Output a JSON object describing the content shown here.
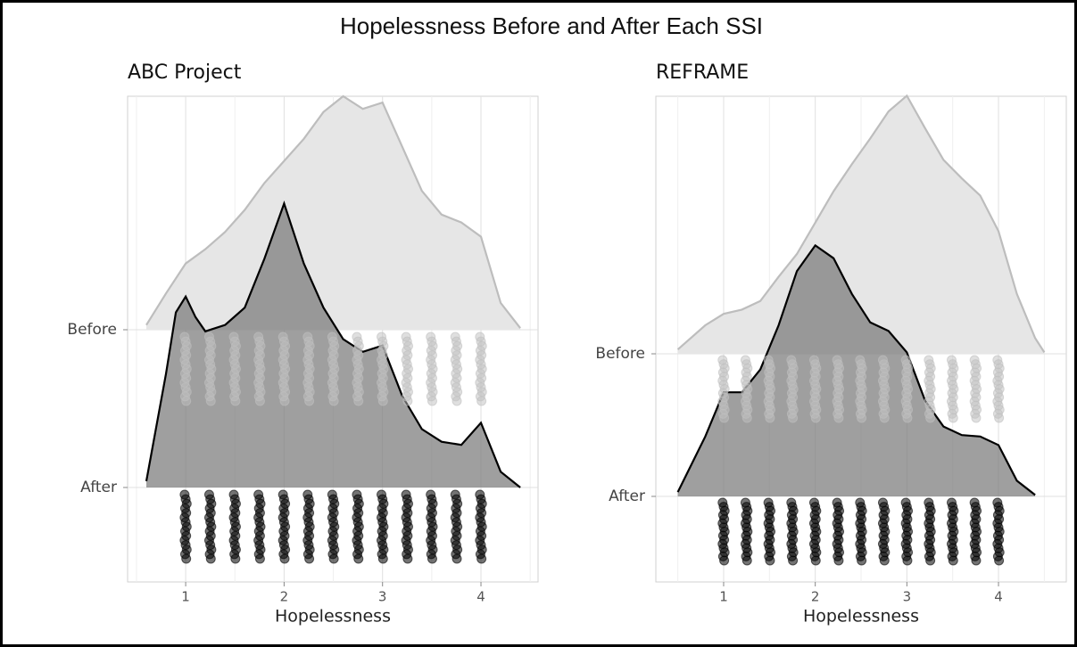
{
  "title": "Hopelessness Before and After Each SSI",
  "chart_data": [
    {
      "type": "raincloud",
      "title": "ABC Project",
      "x_label": "Hopelessness",
      "xlim": [
        0.41,
        4.58
      ],
      "xticks": [
        1,
        2,
        3,
        4
      ],
      "minor_xticks": [
        0.5,
        1.5,
        2.5,
        3.5,
        4.5
      ],
      "grid": true,
      "categories": [
        "Before",
        "After"
      ],
      "series": [
        {
          "color": "#bfbfbf",
          "fill": "#e6e6e6",
          "line_color": "#bdbdbd",
          "x": [
            0.6,
            0.8,
            1.0,
            1.2,
            1.4,
            1.6,
            1.8,
            2.0,
            2.2,
            2.4,
            2.6,
            2.8,
            3.0,
            3.2,
            3.4,
            3.6,
            3.8,
            4.0,
            4.2,
            4.4
          ],
          "values": [
            0.03,
            0.23,
            0.42,
            0.51,
            0.62,
            0.76,
            0.93,
            1.07,
            1.21,
            1.38,
            1.48,
            1.4,
            1.44,
            1.16,
            0.88,
            0.73,
            0.68,
            0.59,
            0.17,
            0.01
          ],
          "points_x": [
            1,
            1.25,
            1.5,
            1.75,
            2,
            2.25,
            2.5,
            2.75,
            3,
            3.25,
            3.5,
            3.75,
            4
          ]
        },
        {
          "color": "#000000",
          "fill": "#7a7a7a",
          "line_color": "#000000",
          "x": [
            0.6,
            0.8,
            0.9,
            1.0,
            1.1,
            1.2,
            1.4,
            1.6,
            1.8,
            2.0,
            2.2,
            2.4,
            2.6,
            2.8,
            3.0,
            3.2,
            3.4,
            3.6,
            3.8,
            4.0,
            4.2,
            4.4
          ],
          "values": [
            0.04,
            0.72,
            1.11,
            1.21,
            1.08,
            0.99,
            1.03,
            1.14,
            1.45,
            1.8,
            1.42,
            1.14,
            0.94,
            0.86,
            0.9,
            0.58,
            0.37,
            0.29,
            0.27,
            0.41,
            0.1,
            0
          ],
          "points_x": [
            1,
            1.25,
            1.5,
            1.75,
            2,
            2.25,
            2.5,
            2.75,
            3,
            3.25,
            3.5,
            3.75,
            4
          ]
        }
      ]
    },
    {
      "type": "raincloud",
      "title": "REFRAME",
      "x_label": "Hopelessness",
      "xlim": [
        0.26,
        4.74
      ],
      "xticks": [
        1,
        2,
        3,
        4
      ],
      "minor_xticks": [
        0.5,
        1.5,
        2.5,
        3.5,
        4.5
      ],
      "grid": true,
      "categories": [
        "Before",
        "After"
      ],
      "series": [
        {
          "color": "#bfbfbf",
          "fill": "#e6e6e6",
          "line_color": "#bdbdbd",
          "x": [
            0.5,
            0.8,
            1.0,
            1.2,
            1.4,
            1.6,
            1.8,
            2.0,
            2.2,
            2.4,
            2.6,
            2.8,
            3.0,
            3.2,
            3.4,
            3.6,
            3.8,
            4.0,
            4.2,
            4.4,
            4.5
          ],
          "values": [
            0.03,
            0.2,
            0.28,
            0.31,
            0.37,
            0.54,
            0.7,
            0.92,
            1.14,
            1.33,
            1.51,
            1.7,
            1.81,
            1.58,
            1.36,
            1.23,
            1.11,
            0.86,
            0.42,
            0.11,
            0.01
          ],
          "points_x": [
            1,
            1.25,
            1.5,
            1.75,
            2,
            2.25,
            2.5,
            2.75,
            3,
            3.25,
            3.5,
            3.75,
            4
          ]
        },
        {
          "color": "#000000",
          "fill": "#7a7a7a",
          "line_color": "#000000",
          "x": [
            0.5,
            0.8,
            1.0,
            1.2,
            1.4,
            1.6,
            1.8,
            2.0,
            2.2,
            2.4,
            2.6,
            2.8,
            3.0,
            3.2,
            3.4,
            3.6,
            3.8,
            4.0,
            4.2,
            4.4
          ],
          "values": [
            0.03,
            0.42,
            0.73,
            0.73,
            0.89,
            1.2,
            1.58,
            1.76,
            1.67,
            1.42,
            1.22,
            1.16,
            1.01,
            0.67,
            0.49,
            0.43,
            0.42,
            0.36,
            0.11,
            0.01
          ],
          "points_x": [
            1,
            1.25,
            1.5,
            1.75,
            2,
            2.25,
            2.5,
            2.75,
            3,
            3.25,
            3.5,
            3.75,
            4
          ]
        }
      ]
    }
  ]
}
